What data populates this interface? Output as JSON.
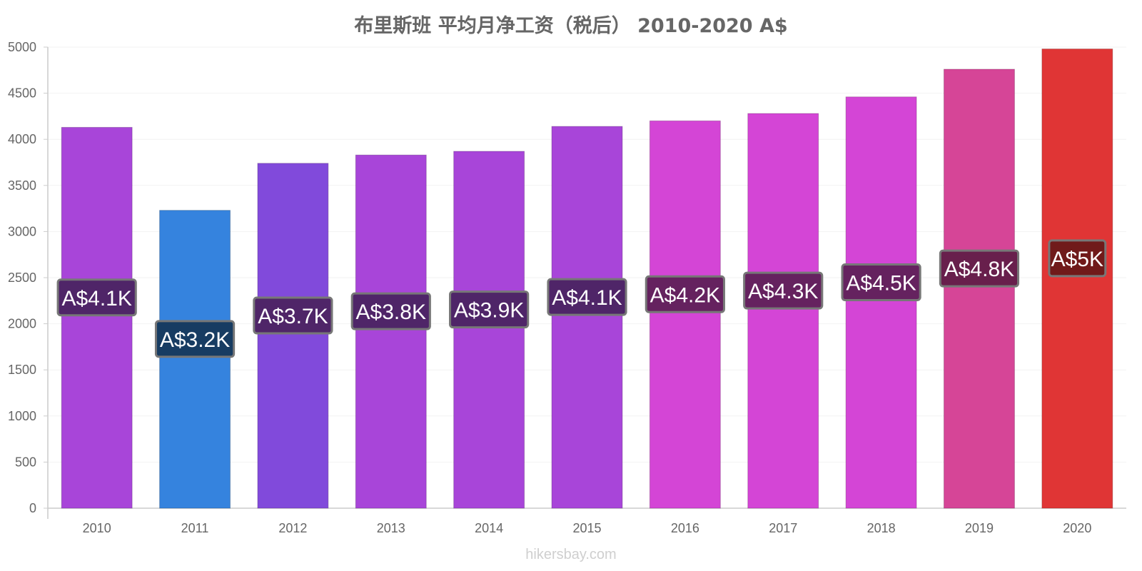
{
  "chart_data": {
    "type": "bar",
    "title": "布里斯班 平均月净工资（税后） 2010-2020 A$",
    "xlabel": "",
    "ylabel": "",
    "ylim": [
      0,
      5000
    ],
    "yticks": [
      0,
      500,
      1000,
      1500,
      2000,
      2500,
      3000,
      3500,
      4000,
      4500,
      5000
    ],
    "grid": true,
    "categories": [
      "2010",
      "2011",
      "2012",
      "2013",
      "2014",
      "2015",
      "2016",
      "2017",
      "2018",
      "2019",
      "2020"
    ],
    "values": [
      4130,
      3230,
      3740,
      3830,
      3870,
      4140,
      4200,
      4280,
      4460,
      4760,
      4980
    ],
    "data_labels": [
      "A$4.1K",
      "A$3.2K",
      "A$3.7K",
      "A$3.8K",
      "A$3.9K",
      "A$4.1K",
      "A$4.2K",
      "A$4.3K",
      "A$4.5K",
      "A$4.8K",
      "A$5K"
    ],
    "bar_colors": [
      "#a845d9",
      "#3583de",
      "#814adb",
      "#a845d9",
      "#a845d9",
      "#a845d9",
      "#d445d6",
      "#d445d6",
      "#d445d6",
      "#d64597",
      "#e03535"
    ],
    "label_bg_colors": [
      "#4f2568",
      "#173c62",
      "#4f2568",
      "#4f2568",
      "#4f2568",
      "#4f2568",
      "#65225f",
      "#65225f",
      "#65225f",
      "#681f4c",
      "#701a1a"
    ]
  },
  "footer": {
    "watermark": "hikersbay.com"
  }
}
